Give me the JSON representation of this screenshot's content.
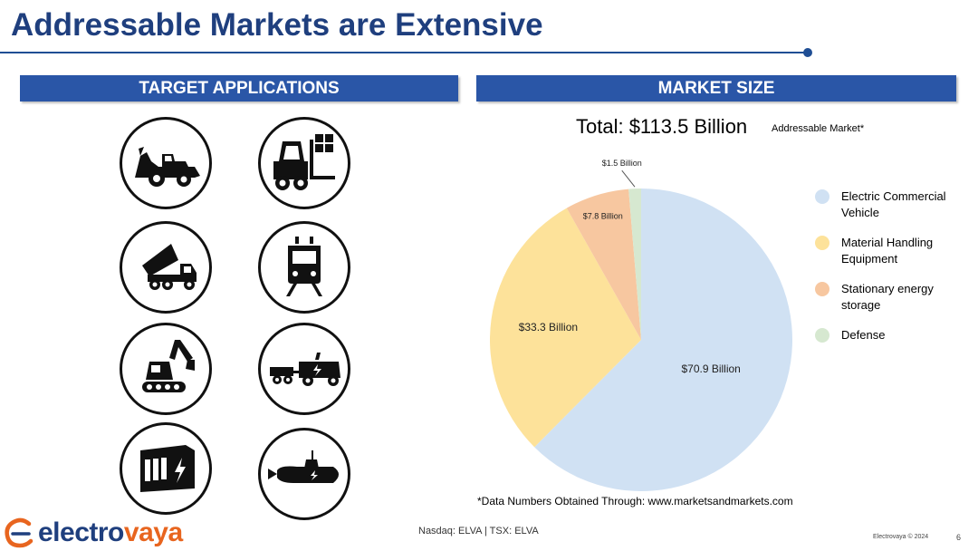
{
  "header": {
    "title": "Addressable Markets are Extensive"
  },
  "banners": {
    "left": "TARGET APPLICATIONS",
    "right": "MARKET SIZE"
  },
  "applications": [
    {
      "icon": "backhoe-loader-icon"
    },
    {
      "icon": "forklift-icon"
    },
    {
      "icon": "dump-truck-icon"
    },
    {
      "icon": "train-icon"
    },
    {
      "icon": "excavator-icon"
    },
    {
      "icon": "electric-truck-trailer-icon"
    },
    {
      "icon": "battery-storage-container-icon"
    },
    {
      "icon": "submarine-icon"
    }
  ],
  "market": {
    "total_label": "Total: $113.5 Billion",
    "subtitle": "Addressable Market*",
    "footnote": "*Data Numbers Obtained Through: www.marketsandmarkets.com"
  },
  "chart_data": {
    "type": "pie",
    "title": "Total: $113.5 Billion",
    "subtitle": "Addressable Market*",
    "units": "Billion USD",
    "start_angle_deg": 0,
    "direction": "clockwise",
    "legend_position": "right",
    "slices": [
      {
        "name": "Electric Commercial Vehicle",
        "value": 70.9,
        "label": "$70.9  Billion",
        "color": "#d0e1f3"
      },
      {
        "name": "Material Handling Equipment",
        "value": 33.3,
        "label": "$33.3 Billion",
        "color": "#fde29a"
      },
      {
        "name": "Stationary energy storage",
        "value": 7.8,
        "label": "$7.8 Billion",
        "color": "#f7c7a0"
      },
      {
        "name": "Defense",
        "value": 1.5,
        "label": "$1.5 Billion",
        "color": "#d6e8d0"
      }
    ]
  },
  "legend": [
    {
      "label": "Electric Commercial Vehicle",
      "color": "#d0e1f3"
    },
    {
      "label": "Material Handling Equipment",
      "color": "#fde29a"
    },
    {
      "label": "Stationary energy storage",
      "color": "#f7c7a0"
    },
    {
      "label": "Defense",
      "color": "#d6e8d0"
    }
  ],
  "footer": {
    "logo_prefix": "electro",
    "logo_suffix": "vaya",
    "exchange": "Nasdaq: ELVA | TSX: ELVA",
    "copyright": "Electrovaya © 2024",
    "page_number": "6"
  }
}
